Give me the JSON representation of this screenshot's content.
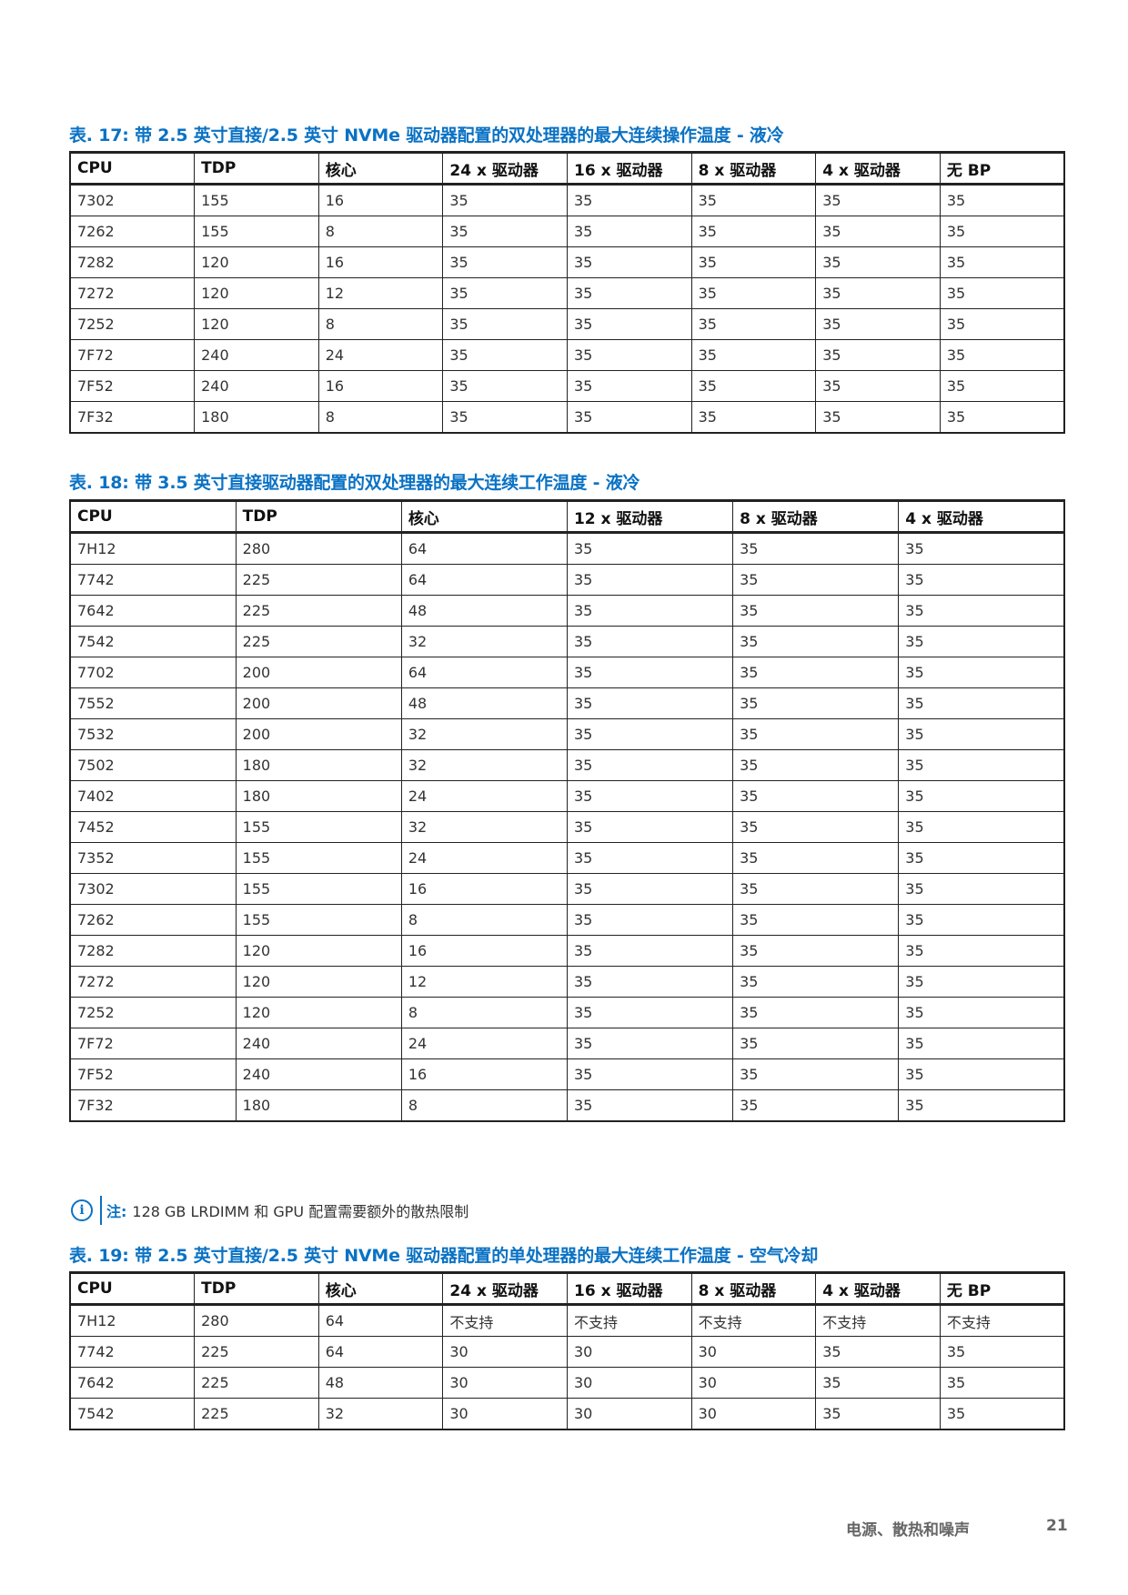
{
  "tables": [
    {
      "caption": "表. 17: 带 2.5 英寸直接/2.5 英寸 NVMe 驱动器配置的双处理器的最大连续操作温度 - 液冷",
      "headers": [
        "CPU",
        "TDP",
        "核心",
        "24 x 驱动器",
        "16 x 驱动器",
        "8 x 驱动器",
        "4 x 驱动器",
        "无 BP"
      ],
      "rows": [
        [
          "7302",
          "155",
          "16",
          "35",
          "35",
          "35",
          "35",
          "35"
        ],
        [
          "7262",
          "155",
          "8",
          "35",
          "35",
          "35",
          "35",
          "35"
        ],
        [
          "7282",
          "120",
          "16",
          "35",
          "35",
          "35",
          "35",
          "35"
        ],
        [
          "7272",
          "120",
          "12",
          "35",
          "35",
          "35",
          "35",
          "35"
        ],
        [
          "7252",
          "120",
          "8",
          "35",
          "35",
          "35",
          "35",
          "35"
        ],
        [
          "7F72",
          "240",
          "24",
          "35",
          "35",
          "35",
          "35",
          "35"
        ],
        [
          "7F52",
          "240",
          "16",
          "35",
          "35",
          "35",
          "35",
          "35"
        ],
        [
          "7F32",
          "180",
          "8",
          "35",
          "35",
          "35",
          "35",
          "35"
        ]
      ]
    },
    {
      "caption": "表. 18: 带 3.5 英寸直接驱动器配置的双处理器的最大连续工作温度 - 液冷",
      "headers": [
        "CPU",
        "TDP",
        "核心",
        "12 x 驱动器",
        "8 x 驱动器",
        "4 x 驱动器"
      ],
      "rows": [
        [
          "7H12",
          "280",
          "64",
          "35",
          "35",
          "35"
        ],
        [
          "7742",
          "225",
          "64",
          "35",
          "35",
          "35"
        ],
        [
          "7642",
          "225",
          "48",
          "35",
          "35",
          "35"
        ],
        [
          "7542",
          "225",
          "32",
          "35",
          "35",
          "35"
        ],
        [
          "7702",
          "200",
          "64",
          "35",
          "35",
          "35"
        ],
        [
          "7552",
          "200",
          "48",
          "35",
          "35",
          "35"
        ],
        [
          "7532",
          "200",
          "32",
          "35",
          "35",
          "35"
        ],
        [
          "7502",
          "180",
          "32",
          "35",
          "35",
          "35"
        ],
        [
          "7402",
          "180",
          "24",
          "35",
          "35",
          "35"
        ],
        [
          "7452",
          "155",
          "32",
          "35",
          "35",
          "35"
        ],
        [
          "7352",
          "155",
          "24",
          "35",
          "35",
          "35"
        ],
        [
          "7302",
          "155",
          "16",
          "35",
          "35",
          "35"
        ],
        [
          "7262",
          "155",
          "8",
          "35",
          "35",
          "35"
        ],
        [
          "7282",
          "120",
          "16",
          "35",
          "35",
          "35"
        ],
        [
          "7272",
          "120",
          "12",
          "35",
          "35",
          "35"
        ],
        [
          "7252",
          "120",
          "8",
          "35",
          "35",
          "35"
        ],
        [
          "7F72",
          "240",
          "24",
          "35",
          "35",
          "35"
        ],
        [
          "7F52",
          "240",
          "16",
          "35",
          "35",
          "35"
        ],
        [
          "7F32",
          "180",
          "8",
          "35",
          "35",
          "35"
        ]
      ]
    },
    {
      "caption": "表. 19: 带 2.5 英寸直接/2.5 英寸 NVMe 驱动器配置的单处理器的最大连续工作温度 - 空气冷却",
      "headers": [
        "CPU",
        "TDP",
        "核心",
        "24 x 驱动器",
        "16 x 驱动器",
        "8 x 驱动器",
        "4 x 驱动器",
        "无 BP"
      ],
      "rows": [
        [
          "7H12",
          "280",
          "64",
          "不支持",
          "不支持",
          "不支持",
          "不支持",
          "不支持"
        ],
        [
          "7742",
          "225",
          "64",
          "30",
          "30",
          "30",
          "35",
          "35"
        ],
        [
          "7642",
          "225",
          "48",
          "30",
          "30",
          "30",
          "35",
          "35"
        ],
        [
          "7542",
          "225",
          "32",
          "30",
          "30",
          "30",
          "35",
          "35"
        ]
      ]
    }
  ],
  "note": {
    "icon": "info-icon",
    "label": "注:",
    "text": "128 GB LRDIMM 和 GPU 配置需要额外的散热限制"
  },
  "footer": {
    "section_title": "电源、散热和噪声",
    "page_number": "21"
  },
  "colors": {
    "accent": "#0a72c4",
    "border": "#222222",
    "footer_text": "#666666"
  }
}
